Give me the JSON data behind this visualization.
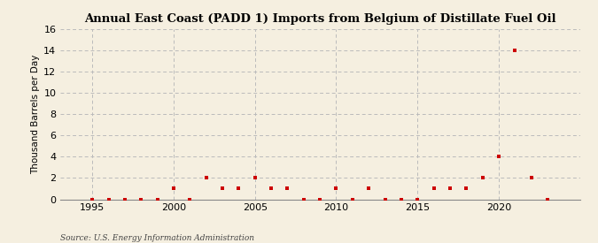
{
  "title": "Annual East Coast (PADD 1) Imports from Belgium of Distillate Fuel Oil",
  "ylabel": "Thousand Barrels per Day",
  "source": "Source: U.S. Energy Information Administration",
  "background_color": "#f5efe0",
  "marker_color": "#cc0000",
  "grid_color": "#bbbbbb",
  "xlim": [
    1993,
    2025
  ],
  "ylim": [
    0,
    16
  ],
  "yticks": [
    0,
    2,
    4,
    6,
    8,
    10,
    12,
    14,
    16
  ],
  "xticks": [
    1995,
    2000,
    2005,
    2010,
    2015,
    2020
  ],
  "years": [
    1995,
    1996,
    1997,
    1998,
    1999,
    2000,
    2001,
    2002,
    2003,
    2004,
    2005,
    2006,
    2007,
    2008,
    2009,
    2010,
    2011,
    2012,
    2013,
    2014,
    2015,
    2016,
    2017,
    2018,
    2019,
    2020,
    2021,
    2022,
    2023
  ],
  "values": [
    0,
    0,
    0,
    0,
    0,
    1,
    0,
    2,
    1,
    1,
    2,
    1,
    1,
    0,
    0,
    1,
    0,
    1,
    0,
    0,
    0,
    1,
    1,
    1,
    2,
    4,
    14,
    2,
    0
  ]
}
